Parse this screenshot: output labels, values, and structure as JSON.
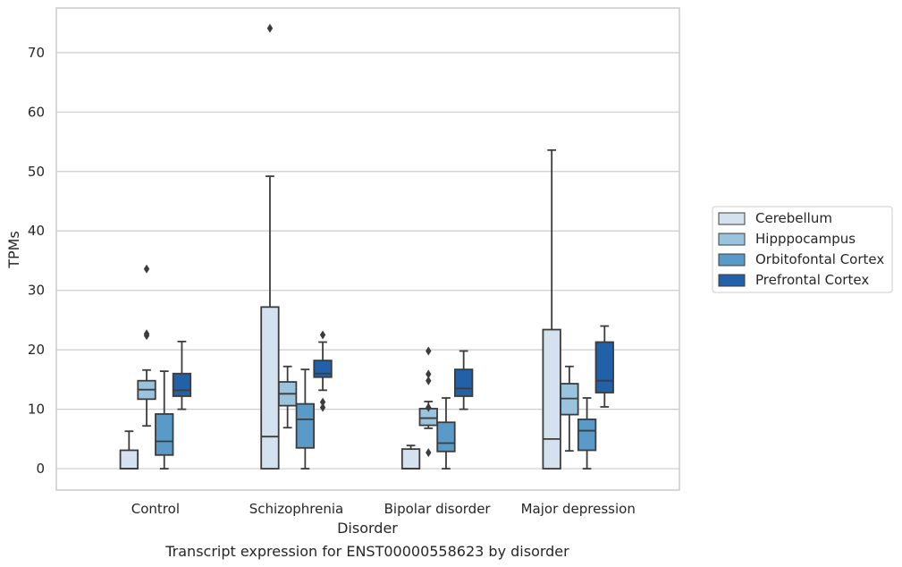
{
  "caption": "Transcript expression for ENST00000558623 by disorder",
  "chart_data": {
    "type": "box",
    "title": "",
    "xlabel": "Disorder",
    "ylabel": "TPMs",
    "ylim": [
      -3.6,
      77.5
    ],
    "yticks": [
      0,
      10,
      20,
      30,
      40,
      50,
      60,
      70
    ],
    "grid": "horizontal",
    "legend_position": "right",
    "categories": [
      "Control",
      "Schizophrenia",
      "Bipolar disorder",
      "Major depression"
    ],
    "series": [
      {
        "name": "Cerebellum",
        "color": "#d4e2f0",
        "boxes": [
          {
            "whisker_low": 0,
            "q1": 0,
            "median": 0,
            "q3": 3.1,
            "whisker_high": 6.3,
            "outliers": []
          },
          {
            "whisker_low": 0,
            "q1": 0,
            "median": 5.4,
            "q3": 27.2,
            "whisker_high": 49.2,
            "outliers": [
              74.1
            ]
          },
          {
            "whisker_low": 0,
            "q1": 0,
            "median": 0,
            "q3": 3.3,
            "whisker_high": 3.9,
            "outliers": []
          },
          {
            "whisker_low": 0,
            "q1": 0,
            "median": 5.0,
            "q3": 23.4,
            "whisker_high": 53.6,
            "outliers": []
          }
        ]
      },
      {
        "name": "Hipppocampus",
        "color": "#9ac3dd",
        "boxes": [
          {
            "whisker_low": 7.2,
            "q1": 11.7,
            "median": 13.3,
            "q3": 14.8,
            "whisker_high": 16.6,
            "outliers": [
              22.4,
              22.7,
              33.6
            ]
          },
          {
            "whisker_low": 6.9,
            "q1": 10.6,
            "median": 12.6,
            "q3": 14.6,
            "whisker_high": 17.2,
            "outliers": []
          },
          {
            "whisker_low": 6.8,
            "q1": 7.3,
            "median": 8.5,
            "q3": 10.1,
            "whisker_high": 11.3,
            "outliers": [
              2.7,
              10.3,
              14.8,
              15.9,
              19.8
            ]
          },
          {
            "whisker_low": 3.0,
            "q1": 9.1,
            "median": 11.8,
            "q3": 14.3,
            "whisker_high": 17.2,
            "outliers": []
          }
        ]
      },
      {
        "name": "Orbitofontal Cortex",
        "color": "#5a9ac9",
        "boxes": [
          {
            "whisker_low": 0,
            "q1": 2.3,
            "median": 4.6,
            "q3": 9.2,
            "whisker_high": 16.4,
            "outliers": []
          },
          {
            "whisker_low": 0,
            "q1": 3.5,
            "median": 8.3,
            "q3": 10.9,
            "whisker_high": 16.7,
            "outliers": []
          },
          {
            "whisker_low": 0,
            "q1": 2.9,
            "median": 4.3,
            "q3": 7.8,
            "whisker_high": 11.9,
            "outliers": []
          },
          {
            "whisker_low": 0,
            "q1": 3.1,
            "median": 6.4,
            "q3": 8.3,
            "whisker_high": 11.9,
            "outliers": []
          }
        ]
      },
      {
        "name": "Prefrontal Cortex",
        "color": "#2260a7",
        "boxes": [
          {
            "whisker_low": 10.0,
            "q1": 12.2,
            "median": 13.2,
            "q3": 16.0,
            "whisker_high": 21.4,
            "outliers": []
          },
          {
            "whisker_low": 13.2,
            "q1": 15.4,
            "median": 16.0,
            "q3": 18.2,
            "whisker_high": 21.3,
            "outliers": [
              10.3,
              11.2,
              22.5
            ]
          },
          {
            "whisker_low": 10.0,
            "q1": 12.2,
            "median": 13.5,
            "q3": 16.7,
            "whisker_high": 19.8,
            "outliers": []
          },
          {
            "whisker_low": 10.4,
            "q1": 12.8,
            "median": 14.8,
            "q3": 21.3,
            "whisker_high": 24.0,
            "outliers": []
          }
        ]
      }
    ]
  }
}
